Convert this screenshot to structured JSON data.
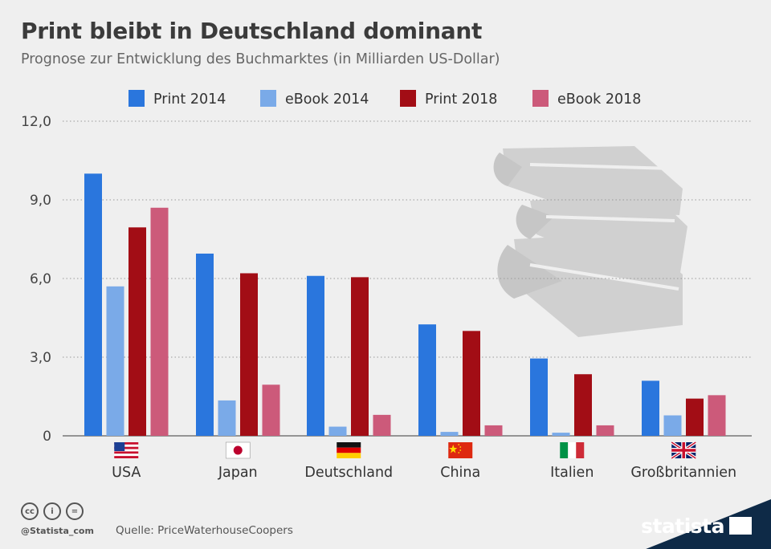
{
  "header": {
    "title": "Print bleibt in Deutschland dominant",
    "subtitle": "Prognose zur Entwicklung des Buchmarktes (in Milliarden US-Dollar)"
  },
  "footer": {
    "handle": "@Statista_com",
    "source": "Quelle: PriceWaterhouseCoopers",
    "brand": "statista",
    "cc_icons": [
      "creative-commons-icon",
      "attribution-icon",
      "no-derivatives-icon"
    ],
    "cc_glyphs": [
      "cc",
      "i",
      "="
    ]
  },
  "chart_data": {
    "type": "bar",
    "categories": [
      "USA",
      "Japan",
      "Deutschland",
      "China",
      "Italien",
      "Großbritannien"
    ],
    "flags": [
      "us-flag-icon",
      "japan-flag-icon",
      "germany-flag-icon",
      "china-flag-icon",
      "italy-flag-icon",
      "uk-flag-icon"
    ],
    "series": [
      {
        "name": "Print 2014",
        "color": "#2a76dd",
        "values": [
          10.0,
          6.95,
          6.1,
          4.25,
          2.95,
          2.1
        ]
      },
      {
        "name": "eBook 2014",
        "color": "#7aaae8",
        "values": [
          5.7,
          1.35,
          0.35,
          0.15,
          0.12,
          0.78
        ]
      },
      {
        "name": "Print 2018",
        "color": "#a20d15",
        "values": [
          7.95,
          6.2,
          6.05,
          4.0,
          2.35,
          1.42
        ]
      },
      {
        "name": "eBook 2018",
        "color": "#cc5a7a",
        "values": [
          8.7,
          1.95,
          0.8,
          0.4,
          0.4,
          1.55
        ]
      }
    ],
    "yticks": [
      "0",
      "3,0",
      "6,0",
      "9,0",
      "12,0"
    ],
    "ytick_values": [
      0,
      3,
      6,
      9,
      12
    ],
    "ylim": [
      0,
      12
    ],
    "grid": true,
    "legend": "top"
  }
}
